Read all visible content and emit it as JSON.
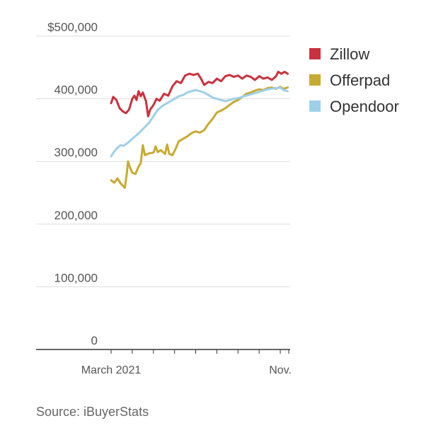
{
  "chart_data": {
    "type": "line",
    "xlabel": "",
    "ylabel": "",
    "x_tick_labels": [
      {
        "label": "March 2021",
        "month": 0
      },
      {
        "label": "Nov.",
        "month": 8
      }
    ],
    "x_range": [
      0,
      8.4
    ],
    "ylim": [
      0,
      500000
    ],
    "y_ticks": [
      {
        "value": 500000,
        "label": "$500,000"
      },
      {
        "value": 400000,
        "label": "400,000"
      },
      {
        "value": 300000,
        "label": "300,000"
      },
      {
        "value": 200000,
        "label": "200,000"
      },
      {
        "value": 100000,
        "label": "100,000"
      },
      {
        "value": 0,
        "label": "0"
      }
    ],
    "grid": true,
    "legend_position": "top-right",
    "series": [
      {
        "name": "Zillow",
        "color": "#c9313d",
        "points": [
          [
            0.0,
            393000
          ],
          [
            0.1,
            403000
          ],
          [
            0.25,
            398000
          ],
          [
            0.4,
            385000
          ],
          [
            0.55,
            380000
          ],
          [
            0.7,
            377000
          ],
          [
            0.85,
            383000
          ],
          [
            1.0,
            400000
          ],
          [
            1.1,
            405000
          ],
          [
            1.2,
            398000
          ],
          [
            1.3,
            412000
          ],
          [
            1.4,
            404000
          ],
          [
            1.5,
            410000
          ],
          [
            1.65,
            396000
          ],
          [
            1.75,
            372000
          ],
          [
            1.85,
            383000
          ],
          [
            2.0,
            390000
          ],
          [
            2.15,
            400000
          ],
          [
            2.3,
            397000
          ],
          [
            2.5,
            408000
          ],
          [
            2.7,
            405000
          ],
          [
            2.9,
            420000
          ],
          [
            3.1,
            428000
          ],
          [
            3.3,
            425000
          ],
          [
            3.5,
            437000
          ],
          [
            3.7,
            440000
          ],
          [
            3.9,
            438000
          ],
          [
            4.1,
            440000
          ],
          [
            4.25,
            432000
          ],
          [
            4.4,
            422000
          ],
          [
            4.6,
            427000
          ],
          [
            4.8,
            425000
          ],
          [
            5.0,
            432000
          ],
          [
            5.2,
            428000
          ],
          [
            5.4,
            436000
          ],
          [
            5.6,
            438000
          ],
          [
            5.8,
            435000
          ],
          [
            6.0,
            437000
          ],
          [
            6.2,
            432000
          ],
          [
            6.4,
            437000
          ],
          [
            6.6,
            435000
          ],
          [
            6.8,
            430000
          ],
          [
            7.0,
            436000
          ],
          [
            7.2,
            432000
          ],
          [
            7.4,
            434000
          ],
          [
            7.6,
            430000
          ],
          [
            7.8,
            436000
          ],
          [
            7.9,
            443000
          ],
          [
            8.05,
            440000
          ],
          [
            8.2,
            443000
          ],
          [
            8.35,
            440000
          ]
        ]
      },
      {
        "name": "Offerpad",
        "color": "#c8aa32",
        "points": [
          [
            0.0,
            270000
          ],
          [
            0.15,
            266000
          ],
          [
            0.3,
            273000
          ],
          [
            0.45,
            265000
          ],
          [
            0.65,
            258000
          ],
          [
            0.75,
            283000
          ],
          [
            0.8,
            300000
          ],
          [
            0.9,
            290000
          ],
          [
            1.0,
            282000
          ],
          [
            1.15,
            280000
          ],
          [
            1.3,
            292000
          ],
          [
            1.4,
            297000
          ],
          [
            1.5,
            326000
          ],
          [
            1.6,
            310000
          ],
          [
            1.8,
            313000
          ],
          [
            2.0,
            314000
          ],
          [
            2.1,
            324000
          ],
          [
            2.2,
            315000
          ],
          [
            2.35,
            318000
          ],
          [
            2.55,
            312000
          ],
          [
            2.65,
            327000
          ],
          [
            2.75,
            312000
          ],
          [
            2.9,
            310000
          ],
          [
            3.05,
            320000
          ],
          [
            3.2,
            332000
          ],
          [
            3.4,
            336000
          ],
          [
            3.6,
            340000
          ],
          [
            3.8,
            345000
          ],
          [
            4.0,
            348000
          ],
          [
            4.2,
            346000
          ],
          [
            4.4,
            350000
          ],
          [
            4.6,
            360000
          ],
          [
            4.8,
            368000
          ],
          [
            5.0,
            378000
          ],
          [
            5.2,
            381000
          ],
          [
            5.4,
            385000
          ],
          [
            5.6,
            390000
          ],
          [
            5.8,
            395000
          ],
          [
            6.0,
            398000
          ],
          [
            6.2,
            403000
          ],
          [
            6.4,
            408000
          ],
          [
            6.6,
            410000
          ],
          [
            6.8,
            413000
          ],
          [
            7.0,
            415000
          ],
          [
            7.2,
            414000
          ],
          [
            7.4,
            417000
          ],
          [
            7.6,
            418000
          ],
          [
            7.8,
            416000
          ],
          [
            8.0,
            419000
          ],
          [
            8.15,
            416000
          ],
          [
            8.35,
            418000
          ]
        ]
      },
      {
        "name": "Opendoor",
        "color": "#9dd0ea",
        "points": [
          [
            0.0,
            308000
          ],
          [
            0.15,
            316000
          ],
          [
            0.3,
            322000
          ],
          [
            0.45,
            326000
          ],
          [
            0.6,
            325000
          ],
          [
            0.8,
            330000
          ],
          [
            1.0,
            336000
          ],
          [
            1.2,
            342000
          ],
          [
            1.4,
            348000
          ],
          [
            1.6,
            355000
          ],
          [
            1.8,
            362000
          ],
          [
            2.0,
            372000
          ],
          [
            2.2,
            382000
          ],
          [
            2.4,
            388000
          ],
          [
            2.6,
            392000
          ],
          [
            2.8,
            396000
          ],
          [
            3.0,
            400000
          ],
          [
            3.2,
            404000
          ],
          [
            3.4,
            406000
          ],
          [
            3.6,
            410000
          ],
          [
            3.8,
            412000
          ],
          [
            4.0,
            414000
          ],
          [
            4.2,
            412000
          ],
          [
            4.4,
            410000
          ],
          [
            4.6,
            406000
          ],
          [
            4.8,
            402000
          ],
          [
            5.0,
            400000
          ],
          [
            5.2,
            398000
          ],
          [
            5.4,
            396000
          ],
          [
            5.6,
            398000
          ],
          [
            5.8,
            400000
          ],
          [
            6.0,
            401000
          ],
          [
            6.2,
            403000
          ],
          [
            6.4,
            405000
          ],
          [
            6.6,
            407000
          ],
          [
            6.8,
            409000
          ],
          [
            7.0,
            411000
          ],
          [
            7.2,
            413000
          ],
          [
            7.4,
            415000
          ],
          [
            7.6,
            416000
          ],
          [
            7.8,
            417000
          ],
          [
            8.0,
            418000
          ],
          [
            8.15,
            414000
          ],
          [
            8.35,
            412000
          ]
        ]
      }
    ]
  },
  "source": "Source: iBuyerStats"
}
